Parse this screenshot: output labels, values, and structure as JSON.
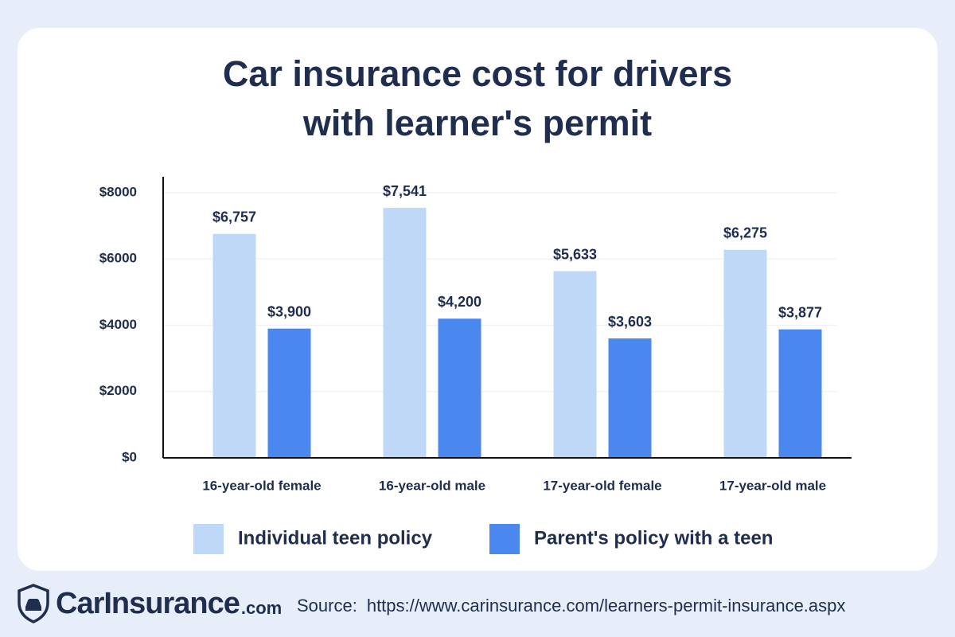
{
  "chart_data": {
    "type": "bar",
    "title": "Car insurance cost for drivers with learner's permit",
    "categories": [
      "16-year-old female",
      "16-year-old male",
      "17-year-old female",
      "17-year-old male"
    ],
    "series": [
      {
        "name": "Individual teen policy",
        "color": "#bfd8f8",
        "values": [
          6757,
          7541,
          5633,
          6275
        ],
        "value_labels": [
          "$6,757",
          "$7,541",
          "$5,633",
          "$6,275"
        ]
      },
      {
        "name": "Parent's policy with a teen",
        "color": "#4a88f0",
        "values": [
          3900,
          4200,
          3603,
          3877
        ],
        "value_labels": [
          "$3,900",
          "$4,200",
          "$3,603",
          "$3,877"
        ]
      }
    ],
    "ylim": [
      0,
      8000
    ],
    "yticks": [
      {
        "value": 0,
        "label": "$0"
      },
      {
        "value": 2000,
        "label": "$2000"
      },
      {
        "value": 4000,
        "label": "$4000"
      },
      {
        "value": 6000,
        "label": "$6000"
      },
      {
        "value": 8000,
        "label": "$8000"
      }
    ],
    "grid": true
  },
  "footer": {
    "brand": "CarInsurance",
    "brand_suffix": ".com",
    "source_label": "Source:",
    "source_url": "https://www.carinsurance.com/learners-permit-insurance.aspx"
  }
}
